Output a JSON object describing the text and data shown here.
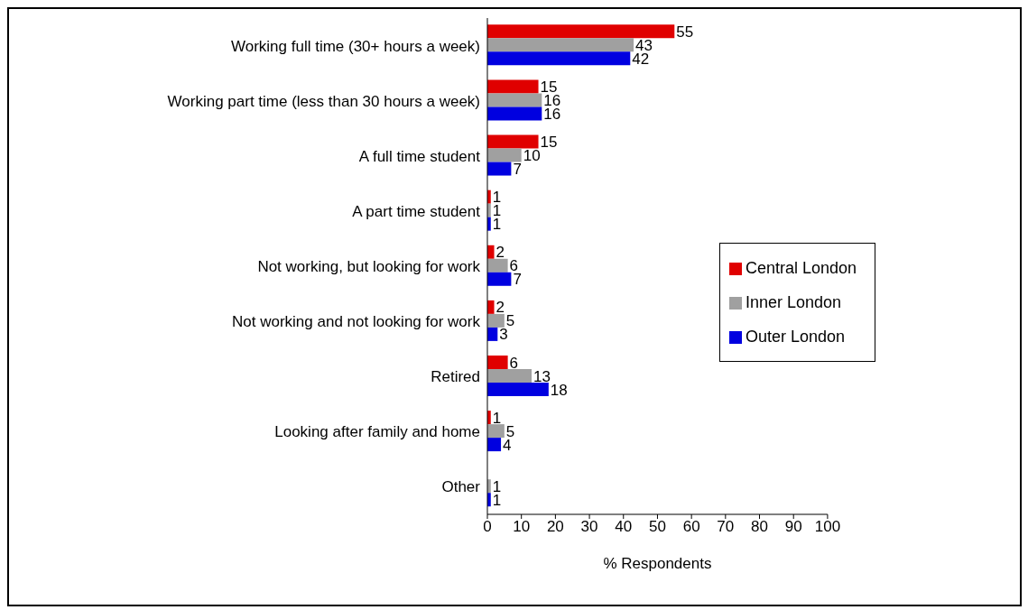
{
  "chart_data": {
    "type": "bar",
    "orientation": "horizontal",
    "xlabel": "% Respondents",
    "categories": [
      "Working full time (30+ hours a week)",
      "Working part time (less than 30 hours a week)",
      "A full time student",
      "A part time student",
      "Not working, but looking for work",
      "Not working and not looking for work",
      "Retired",
      "Looking after family and home",
      "Other"
    ],
    "series": [
      {
        "name": "Central London",
        "color": "#e00000",
        "values": [
          55,
          15,
          15,
          1,
          2,
          2,
          6,
          1,
          null
        ]
      },
      {
        "name": "Inner London",
        "color": "#a0a0a0",
        "values": [
          43,
          16,
          10,
          1,
          6,
          5,
          13,
          5,
          1
        ]
      },
      {
        "name": "Outer London",
        "color": "#0000e0",
        "values": [
          42,
          16,
          7,
          1,
          7,
          3,
          18,
          4,
          1
        ]
      }
    ],
    "xlim": [
      0,
      100
    ],
    "xticks": [
      0,
      10,
      20,
      30,
      40,
      50,
      60,
      70,
      80,
      90,
      100
    ],
    "data_labels": true,
    "grid": false,
    "legend": "right"
  }
}
